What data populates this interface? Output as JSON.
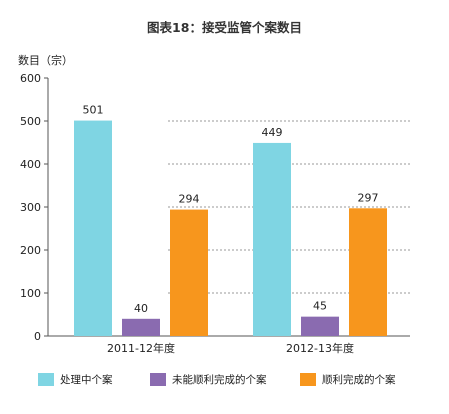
{
  "chart_data": {
    "type": "bar",
    "title": "图表18：接受监管个案数目",
    "ylabel": "数目（宗）",
    "xlabel": "",
    "ylim": [
      0,
      600
    ],
    "yticks": [
      0,
      100,
      200,
      300,
      400,
      500,
      600
    ],
    "categories": [
      "2011-12年度",
      "2012-13年度"
    ],
    "series": [
      {
        "name": "处理中个案",
        "values": [
          501,
          449
        ],
        "color": "#7fd5e3"
      },
      {
        "name": "未能顺利完成的个案",
        "values": [
          40,
          45
        ],
        "color": "#8a6bb0"
      },
      {
        "name": "顺利完成的个案",
        "values": [
          294,
          297
        ],
        "color": "#f7961d"
      }
    ],
    "gridlines": "dotted",
    "legend_position": "bottom"
  }
}
